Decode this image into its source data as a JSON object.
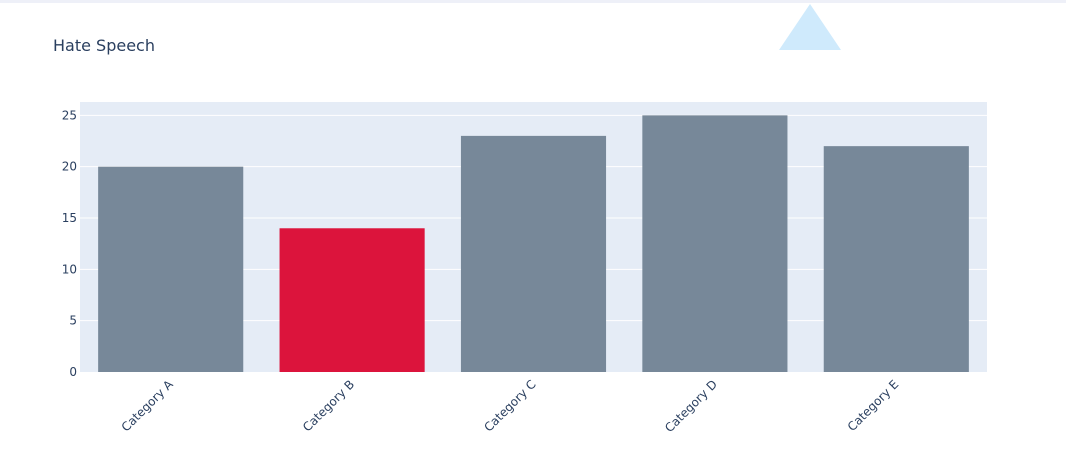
{
  "chart_data": {
    "type": "bar",
    "title": "Hate Speech",
    "categories": [
      "Category A",
      "Category B",
      "Category C",
      "Category D",
      "Category E"
    ],
    "values": [
      20,
      14,
      23,
      25,
      22
    ],
    "colors": [
      "#778899",
      "#dc143c",
      "#778899",
      "#778899",
      "#778899"
    ],
    "ylim": [
      0,
      26.3
    ],
    "yticks": [
      0,
      5,
      10,
      15,
      20,
      25
    ],
    "grid": true,
    "plot_bg": "#e5ecf6",
    "marker": {
      "shape": "triangle",
      "color": "#cfeafc"
    }
  }
}
